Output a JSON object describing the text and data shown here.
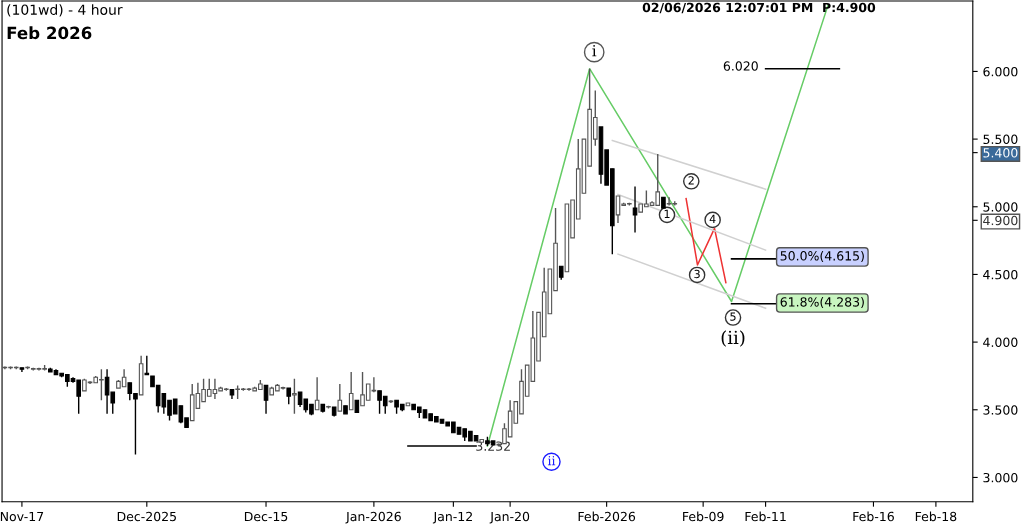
{
  "chart_data": {
    "type": "candlestick",
    "title": "(101wd) - 4 hour",
    "subtitle": "Feb 2026",
    "categories": [
      null,
      null,
      null,
      "Nov-17",
      null,
      null,
      null,
      null,
      null,
      null,
      null,
      null,
      null,
      null,
      null,
      null,
      null,
      null,
      null,
      null,
      null,
      null,
      null,
      null,
      null,
      "Dec-2025",
      null,
      null,
      null,
      null,
      null,
      null,
      null,
      null,
      null,
      null,
      null,
      null,
      null,
      null,
      null,
      null,
      null,
      null,
      null,
      null,
      "Dec-15",
      null,
      null,
      null,
      null,
      null,
      null,
      null,
      null,
      null,
      null,
      null,
      null,
      null,
      null,
      null,
      null,
      null,
      null,
      "Jan-2026",
      null,
      null,
      null,
      null,
      null,
      null,
      null,
      null,
      null,
      null,
      null,
      null,
      null,
      "Jan-12",
      null,
      null,
      null,
      null,
      null,
      null,
      null,
      null,
      null,
      "Jan-20",
      null,
      null,
      null,
      null,
      null,
      null,
      null,
      null,
      null,
      null,
      null,
      null,
      null,
      null,
      null,
      null,
      "Feb-2026",
      null,
      null,
      null,
      null,
      null,
      null,
      null,
      null,
      null,
      null,
      null,
      null,
      null,
      null,
      null,
      null,
      "Feb-09",
      null,
      null,
      null,
      null,
      null,
      null,
      null,
      null,
      null,
      null,
      "Feb-11",
      null,
      null,
      null,
      null,
      null,
      null,
      null,
      null,
      null,
      null,
      null,
      null,
      null,
      null,
      null,
      null,
      null,
      null,
      "Feb-16",
      null,
      null,
      null,
      null,
      null,
      null,
      null,
      null,
      null,
      null,
      "Feb-18",
      null,
      null,
      null,
      null,
      null,
      null
    ],
    "ohlc": [
      [
        3.81,
        3.82,
        3.8,
        3.81
      ],
      [
        3.81,
        3.82,
        3.8,
        3.81
      ],
      [
        3.81,
        3.82,
        3.8,
        3.81
      ],
      [
        3.81,
        3.81,
        3.78,
        3.8
      ],
      [
        3.81,
        3.82,
        3.8,
        3.81
      ],
      [
        3.8,
        3.81,
        3.79,
        3.8
      ],
      [
        3.8,
        3.81,
        3.79,
        3.8
      ],
      [
        3.8,
        3.83,
        3.79,
        3.8
      ],
      [
        3.8,
        3.81,
        3.78,
        3.78
      ],
      [
        3.79,
        3.8,
        3.76,
        3.76
      ],
      [
        3.77,
        3.77,
        3.74,
        3.75
      ],
      [
        3.76,
        3.76,
        3.67,
        3.71
      ],
      [
        3.73,
        3.74,
        3.7,
        3.71
      ],
      [
        3.72,
        3.72,
        3.47,
        3.6
      ],
      [
        3.64,
        3.73,
        3.64,
        3.72
      ],
      [
        3.7,
        3.71,
        3.69,
        3.7
      ],
      [
        3.7,
        3.75,
        3.7,
        3.74
      ],
      [
        3.72,
        3.8,
        3.57,
        3.72
      ],
      [
        3.74,
        3.8,
        3.47,
        3.61
      ],
      [
        3.63,
        3.63,
        3.47,
        3.55
      ],
      [
        3.66,
        3.72,
        3.66,
        3.71
      ],
      [
        3.67,
        3.8,
        3.67,
        3.74
      ],
      [
        3.7,
        3.7,
        3.57,
        3.62
      ],
      [
        3.62,
        3.62,
        3.17,
        3.58
      ],
      [
        3.61,
        3.9,
        3.61,
        3.84
      ],
      [
        3.77,
        3.9,
        3.76,
        3.76
      ],
      [
        3.75,
        3.75,
        3.67,
        3.67
      ],
      [
        3.68,
        3.68,
        3.48,
        3.53
      ],
      [
        3.62,
        3.62,
        3.47,
        3.52
      ],
      [
        3.57,
        3.57,
        3.42,
        3.46
      ],
      [
        3.58,
        3.58,
        3.47,
        3.47
      ],
      [
        3.53,
        3.53,
        3.4,
        3.41
      ],
      [
        3.44,
        3.44,
        3.37,
        3.37
      ],
      [
        3.42,
        3.69,
        3.42,
        3.61
      ],
      [
        3.51,
        3.7,
        3.51,
        3.62
      ],
      [
        3.56,
        3.73,
        3.56,
        3.65
      ],
      [
        3.6,
        3.73,
        3.6,
        3.65
      ],
      [
        3.62,
        3.73,
        3.58,
        3.65
      ],
      [
        3.64,
        3.67,
        3.64,
        3.66
      ],
      [
        3.65,
        3.66,
        3.64,
        3.65
      ],
      [
        3.65,
        3.65,
        3.58,
        3.61
      ],
      [
        3.65,
        3.68,
        3.58,
        3.65
      ],
      [
        3.65,
        3.66,
        3.64,
        3.65
      ],
      [
        3.65,
        3.66,
        3.64,
        3.65
      ],
      [
        3.64,
        3.67,
        3.64,
        3.66
      ],
      [
        3.65,
        3.72,
        3.65,
        3.69
      ],
      [
        3.68,
        3.68,
        3.47,
        3.57
      ],
      [
        3.61,
        3.67,
        3.61,
        3.66
      ],
      [
        3.64,
        3.69,
        3.64,
        3.68
      ],
      [
        3.66,
        3.67,
        3.65,
        3.66
      ],
      [
        3.66,
        3.66,
        3.54,
        3.6
      ],
      [
        3.61,
        3.73,
        3.47,
        3.62
      ],
      [
        3.63,
        3.63,
        3.52,
        3.54
      ],
      [
        3.58,
        3.58,
        3.48,
        3.5
      ],
      [
        3.54,
        3.54,
        3.46,
        3.47
      ],
      [
        3.5,
        3.74,
        3.5,
        3.57
      ],
      [
        3.54,
        3.54,
        3.48,
        3.49
      ],
      [
        3.52,
        3.53,
        3.51,
        3.52
      ],
      [
        3.52,
        3.52,
        3.45,
        3.46
      ],
      [
        3.49,
        3.69,
        3.49,
        3.57
      ],
      [
        3.53,
        3.53,
        3.47,
        3.47
      ],
      [
        3.5,
        3.78,
        3.5,
        3.62
      ],
      [
        3.57,
        3.57,
        3.48,
        3.48
      ],
      [
        3.53,
        3.78,
        3.53,
        3.61
      ],
      [
        3.57,
        3.69,
        3.57,
        3.69
      ],
      [
        3.64,
        3.74,
        3.63,
        3.64
      ],
      [
        3.64,
        3.64,
        3.47,
        3.57
      ],
      [
        3.6,
        3.6,
        3.47,
        3.53
      ],
      [
        3.56,
        3.57,
        3.55,
        3.56
      ],
      [
        3.57,
        3.57,
        3.47,
        3.52
      ],
      [
        3.54,
        3.54,
        3.49,
        3.5
      ],
      [
        3.53,
        3.55,
        3.53,
        3.55
      ],
      [
        3.54,
        3.54,
        3.5,
        3.5
      ],
      [
        3.52,
        3.52,
        3.44,
        3.48
      ],
      [
        3.5,
        3.5,
        3.44,
        3.44
      ],
      [
        3.47,
        3.47,
        3.42,
        3.42
      ],
      [
        3.45,
        3.45,
        3.41,
        3.41
      ],
      [
        3.43,
        3.43,
        3.4,
        3.4
      ],
      [
        3.41,
        3.41,
        3.38,
        3.38
      ],
      [
        3.41,
        3.41,
        3.33,
        3.33
      ],
      [
        3.37,
        3.37,
        3.32,
        3.32
      ],
      [
        3.36,
        3.36,
        3.27,
        3.3
      ],
      [
        3.34,
        3.34,
        3.27,
        3.27
      ],
      [
        3.31,
        3.31,
        3.27,
        3.27
      ],
      [
        3.26,
        3.28,
        3.26,
        3.28
      ],
      [
        3.27,
        3.3,
        3.232,
        3.25
      ],
      [
        3.27,
        3.27,
        3.24,
        3.24
      ],
      [
        3.24,
        3.25,
        3.23,
        3.24
      ],
      [
        3.25,
        3.4,
        3.25,
        3.36
      ],
      [
        3.3,
        3.57,
        3.3,
        3.49
      ],
      [
        3.4,
        3.56,
        3.4,
        3.56
      ],
      [
        3.47,
        3.8,
        3.47,
        3.71
      ],
      [
        3.6,
        3.83,
        3.6,
        3.83
      ],
      [
        3.71,
        4.23,
        3.71,
        4.03
      ],
      [
        3.86,
        4.22,
        3.86,
        4.22
      ],
      [
        4.04,
        4.55,
        4.04,
        4.37
      ],
      [
        4.21,
        4.54,
        4.21,
        4.54
      ],
      [
        4.38,
        4.99,
        4.38,
        4.73
      ],
      [
        4.56,
        4.56,
        4.46,
        4.48
      ],
      [
        4.52,
        5.02,
        4.52,
        5.02
      ],
      [
        4.77,
        5.05,
        4.77,
        5.05
      ],
      [
        4.91,
        5.5,
        4.91,
        5.28
      ],
      [
        5.1,
        5.5,
        5.1,
        5.5
      ],
      [
        5.3,
        6.02,
        5.3,
        5.72
      ],
      [
        5.5,
        5.86,
        5.45,
        5.66
      ],
      [
        5.59,
        5.59,
        5.17,
        5.24
      ],
      [
        5.42,
        5.42,
        5.16,
        5.16
      ],
      [
        5.28,
        5.28,
        4.65,
        4.86
      ],
      [
        4.94,
        5.08,
        4.88,
        5.08
      ],
      [
        5.01,
        5.03,
        5.01,
        5.02
      ],
      [
        5.02,
        5.03,
        5.01,
        5.02
      ],
      [
        4.99,
        5.15,
        4.81,
        4.94
      ],
      [
        4.96,
        5.02,
        4.96,
        5.02
      ],
      [
        5.0,
        5.12,
        5.0,
        5.02
      ],
      [
        5.01,
        5.04,
        5.01,
        5.03
      ],
      [
        5.01,
        5.39,
        5.01,
        5.11
      ],
      [
        5.07,
        5.07,
        4.99,
        4.99
      ],
      [
        5.02,
        5.07,
        5.01,
        5.02
      ],
      [
        5.02,
        5.04,
        5.01,
        5.02
      ],
      null,
      null,
      null,
      null,
      null,
      null,
      null,
      null,
      null,
      null,
      null,
      null,
      null,
      null,
      null,
      null,
      null,
      null,
      null,
      null,
      null,
      null,
      null,
      null,
      null,
      null,
      null,
      null,
      null,
      null,
      null,
      null,
      null,
      null,
      null,
      null,
      null,
      null,
      null,
      null,
      null,
      null,
      null,
      null,
      null,
      null,
      null,
      null,
      null,
      null,
      null,
      null
    ],
    "series": [
      {
        "type": "line",
        "color": "#66cc66",
        "values": [
          null,
          null,
          null,
          null,
          null,
          null,
          null,
          null,
          null,
          null,
          null,
          null,
          null,
          null,
          null,
          null,
          null,
          null,
          null,
          null,
          null,
          null,
          null,
          null,
          null,
          null,
          null,
          null,
          null,
          null,
          null,
          null,
          null,
          null,
          null,
          null,
          null,
          null,
          null,
          null,
          null,
          null,
          null,
          null,
          null,
          null,
          null,
          null,
          null,
          null,
          null,
          null,
          null,
          null,
          null,
          null,
          null,
          null,
          null,
          null,
          null,
          null,
          null,
          null,
          null,
          null,
          null,
          null,
          null,
          null,
          null,
          null,
          null,
          null,
          null,
          null,
          null,
          null,
          null,
          null,
          null,
          null,
          null,
          null,
          null,
          3.232,
          null,
          null,
          null,
          null,
          null,
          null,
          null,
          null,
          null,
          null,
          null,
          null,
          null,
          null,
          null,
          null,
          null,
          6.02,
          null,
          null,
          null,
          null,
          null,
          null,
          null,
          null,
          null,
          null,
          null,
          null,
          null,
          null,
          null,
          null,
          null,
          null,
          null,
          null,
          null,
          null,
          null,
          null,
          4.3,
          null,
          null,
          null,
          null,
          null,
          null,
          null,
          null,
          null,
          null,
          null,
          null,
          null,
          null,
          null,
          null,
          6.49,
          null,
          null,
          null,
          null,
          null,
          null,
          null,
          null,
          null,
          null,
          null,
          null,
          null,
          null,
          null,
          null,
          null,
          null,
          null,
          null,
          null,
          null,
          null,
          null,
          null
        ]
      },
      {
        "type": "line",
        "color": "#ee3333",
        "values": [
          null,
          null,
          null,
          null,
          null,
          null,
          null,
          null,
          null,
          null,
          null,
          null,
          null,
          null,
          null,
          null,
          null,
          null,
          null,
          null,
          null,
          null,
          null,
          null,
          null,
          null,
          null,
          null,
          null,
          null,
          null,
          null,
          null,
          null,
          null,
          null,
          null,
          null,
          null,
          null,
          null,
          null,
          null,
          null,
          null,
          null,
          null,
          null,
          null,
          null,
          null,
          null,
          null,
          null,
          null,
          null,
          null,
          null,
          null,
          null,
          null,
          null,
          null,
          null,
          null,
          null,
          null,
          null,
          null,
          null,
          null,
          null,
          null,
          null,
          null,
          null,
          null,
          null,
          null,
          null,
          null,
          null,
          null,
          null,
          null,
          null,
          null,
          null,
          null,
          null,
          null,
          null,
          null,
          null,
          null,
          null,
          null,
          null,
          null,
          null,
          null,
          null,
          null,
          null,
          null,
          null,
          null,
          null,
          null,
          null,
          null,
          null,
          null,
          null,
          null,
          null,
          null,
          null,
          null,
          null,
          5.06,
          null,
          4.57,
          null,
          null,
          4.84,
          null,
          4.44,
          null,
          null,
          null,
          null,
          null,
          null,
          null,
          null,
          null,
          null,
          null,
          null,
          null,
          null,
          null,
          null,
          null,
          null,
          null,
          null,
          null,
          null,
          null,
          null,
          null,
          null,
          null,
          null,
          null,
          null,
          null,
          null,
          null,
          null,
          null,
          null,
          null,
          null,
          null,
          null,
          null,
          null,
          null
        ]
      },
      {
        "type": "line",
        "color": "#d0d0d0",
        "values": [
          null,
          null,
          null,
          null,
          null,
          null,
          null,
          null,
          null,
          null,
          null,
          null,
          null,
          null,
          null,
          null,
          null,
          null,
          null,
          null,
          null,
          null,
          null,
          null,
          null,
          null,
          null,
          null,
          null,
          null,
          null,
          null,
          null,
          null,
          null,
          null,
          null,
          null,
          null,
          null,
          null,
          null,
          null,
          null,
          null,
          null,
          null,
          null,
          null,
          null,
          null,
          null,
          null,
          null,
          null,
          null,
          null,
          null,
          null,
          null,
          null,
          null,
          null,
          null,
          null,
          null,
          null,
          null,
          null,
          null,
          null,
          null,
          null,
          null,
          null,
          null,
          null,
          null,
          null,
          null,
          null,
          null,
          null,
          null,
          null,
          null,
          null,
          null,
          null,
          null,
          null,
          null,
          null,
          null,
          null,
          null,
          null,
          null,
          null,
          null,
          null,
          null,
          null,
          null,
          null,
          null,
          null,
          5.49,
          null,
          null,
          null,
          null,
          null,
          null,
          null,
          null,
          null,
          null,
          null,
          null,
          null,
          null,
          null,
          null,
          null,
          null,
          null,
          null,
          null,
          null,
          null,
          null,
          null,
          null,
          5.13,
          null,
          null,
          null,
          null,
          null,
          null,
          null,
          null,
          null,
          null,
          null,
          null,
          null,
          null,
          null,
          null,
          null,
          null,
          null,
          null,
          null,
          null,
          null,
          null,
          null,
          null,
          null,
          null,
          null,
          null,
          null,
          null,
          null,
          null,
          null,
          null
        ]
      },
      {
        "type": "line",
        "color": "#d0d0d0",
        "values": [
          null,
          null,
          null,
          null,
          null,
          null,
          null,
          null,
          null,
          null,
          null,
          null,
          null,
          null,
          null,
          null,
          null,
          null,
          null,
          null,
          null,
          null,
          null,
          null,
          null,
          null,
          null,
          null,
          null,
          null,
          null,
          null,
          null,
          null,
          null,
          null,
          null,
          null,
          null,
          null,
          null,
          null,
          null,
          null,
          null,
          null,
          null,
          null,
          null,
          null,
          null,
          null,
          null,
          null,
          null,
          null,
          null,
          null,
          null,
          null,
          null,
          null,
          null,
          null,
          null,
          null,
          null,
          null,
          null,
          null,
          null,
          null,
          null,
          null,
          null,
          null,
          null,
          null,
          null,
          null,
          null,
          null,
          null,
          null,
          null,
          null,
          null,
          null,
          null,
          null,
          null,
          null,
          null,
          null,
          null,
          null,
          null,
          null,
          null,
          null,
          null,
          null,
          null,
          null,
          null,
          null,
          null,
          null,
          5.09,
          null,
          null,
          null,
          null,
          null,
          null,
          null,
          null,
          null,
          null,
          null,
          null,
          null,
          null,
          null,
          null,
          null,
          null,
          null,
          null,
          null,
          null,
          null,
          null,
          null,
          4.68,
          null,
          null,
          null,
          null,
          null,
          null,
          null,
          null,
          null,
          null,
          null,
          null,
          null,
          null,
          null,
          null,
          null,
          null,
          null,
          null,
          null,
          null,
          null,
          null,
          null,
          null,
          null,
          null,
          null,
          null,
          null,
          null,
          null,
          null,
          null,
          null
        ]
      },
      {
        "type": "line",
        "color": "#d0d0d0",
        "values": [
          null,
          null,
          null,
          null,
          null,
          null,
          null,
          null,
          null,
          null,
          null,
          null,
          null,
          null,
          null,
          null,
          null,
          null,
          null,
          null,
          null,
          null,
          null,
          null,
          null,
          null,
          null,
          null,
          null,
          null,
          null,
          null,
          null,
          null,
          null,
          null,
          null,
          null,
          null,
          null,
          null,
          null,
          null,
          null,
          null,
          null,
          null,
          null,
          null,
          null,
          null,
          null,
          null,
          null,
          null,
          null,
          null,
          null,
          null,
          null,
          null,
          null,
          null,
          null,
          null,
          null,
          null,
          null,
          null,
          null,
          null,
          null,
          null,
          null,
          null,
          null,
          null,
          null,
          null,
          null,
          null,
          null,
          null,
          null,
          null,
          null,
          null,
          null,
          null,
          null,
          null,
          null,
          null,
          null,
          null,
          null,
          null,
          null,
          null,
          null,
          null,
          null,
          null,
          null,
          null,
          null,
          null,
          null,
          4.65,
          null,
          null,
          null,
          null,
          null,
          null,
          null,
          null,
          null,
          null,
          null,
          null,
          null,
          null,
          null,
          null,
          null,
          null,
          null,
          null,
          null,
          null,
          null,
          null,
          null,
          4.25,
          null,
          null,
          null,
          null,
          null,
          null,
          null,
          null,
          null,
          null,
          null,
          null,
          null,
          null,
          null,
          null,
          null,
          null,
          null,
          null,
          null,
          null,
          null,
          null,
          null,
          null,
          null,
          null,
          null,
          null,
          null,
          null,
          null,
          null,
          null,
          null
        ]
      },
      {
        "type": "line",
        "color": "#000000",
        "values": [
          null,
          null,
          null,
          null,
          null,
          null,
          null,
          null,
          null,
          null,
          null,
          null,
          null,
          null,
          null,
          null,
          null,
          null,
          null,
          null,
          null,
          null,
          null,
          null,
          null,
          null,
          null,
          null,
          null,
          null,
          null,
          null,
          null,
          null,
          null,
          null,
          null,
          null,
          null,
          null,
          null,
          null,
          null,
          null,
          null,
          null,
          null,
          null,
          null,
          null,
          null,
          null,
          null,
          null,
          null,
          null,
          null,
          null,
          null,
          null,
          null,
          null,
          null,
          null,
          null,
          null,
          null,
          null,
          null,
          null,
          null,
          3.232,
          null,
          null,
          null,
          null,
          null,
          null,
          null,
          null,
          null,
          null,
          null,
          3.232,
          null,
          null,
          null,
          null,
          null,
          null,
          null,
          null,
          null,
          null,
          null,
          null,
          null,
          null,
          null,
          null,
          null,
          null,
          null,
          null,
          null,
          null,
          null,
          null,
          null,
          null,
          null,
          null,
          null,
          null,
          null,
          null,
          null,
          null,
          null,
          null,
          null,
          null,
          null,
          null,
          null,
          null,
          null,
          null,
          null,
          null,
          null,
          null,
          null,
          null,
          null,
          null,
          null,
          null,
          null,
          null,
          null,
          null,
          null,
          null,
          null,
          null,
          null,
          null,
          null,
          null,
          null,
          null,
          null,
          null,
          null,
          null,
          null,
          null,
          null,
          null,
          null,
          null,
          null,
          null,
          null,
          null,
          null,
          null,
          null,
          null,
          null
        ]
      },
      {
        "type": "line",
        "color": "#000000",
        "values": [
          null,
          null,
          null,
          null,
          null,
          null,
          null,
          null,
          null,
          null,
          null,
          null,
          null,
          null,
          null,
          null,
          null,
          null,
          null,
          null,
          null,
          null,
          null,
          null,
          null,
          null,
          null,
          null,
          null,
          null,
          null,
          null,
          null,
          null,
          null,
          null,
          null,
          null,
          null,
          null,
          null,
          null,
          null,
          null,
          null,
          null,
          null,
          null,
          null,
          null,
          null,
          null,
          null,
          null,
          null,
          null,
          null,
          null,
          null,
          null,
          null,
          null,
          null,
          null,
          null,
          null,
          null,
          null,
          null,
          null,
          null,
          null,
          null,
          null,
          null,
          null,
          null,
          null,
          null,
          null,
          null,
          null,
          null,
          null,
          null,
          null,
          null,
          null,
          null,
          null,
          null,
          null,
          null,
          null,
          null,
          null,
          null,
          null,
          null,
          null,
          null,
          null,
          null,
          null,
          null,
          null,
          null,
          null,
          null,
          null,
          null,
          null,
          null,
          null,
          null,
          null,
          null,
          null,
          null,
          null,
          null,
          null,
          null,
          null,
          null,
          null,
          null,
          null,
          null,
          null,
          null,
          null,
          null,
          null,
          6.02,
          null,
          null,
          null,
          null,
          null,
          null,
          null,
          null,
          null,
          null,
          null,
          null,
          6.02,
          null,
          null,
          null,
          null,
          null,
          null,
          null,
          null,
          null,
          null,
          null,
          null,
          null,
          null,
          null,
          null,
          null,
          null,
          null,
          null,
          null,
          null,
          null
        ]
      },
      {
        "type": "line",
        "color": "#000000",
        "values": [
          null,
          null,
          null,
          null,
          null,
          null,
          null,
          null,
          null,
          null,
          null,
          null,
          null,
          null,
          null,
          null,
          null,
          null,
          null,
          null,
          null,
          null,
          null,
          null,
          null,
          null,
          null,
          null,
          null,
          null,
          null,
          null,
          null,
          null,
          null,
          null,
          null,
          null,
          null,
          null,
          null,
          null,
          null,
          null,
          null,
          null,
          null,
          null,
          null,
          null,
          null,
          null,
          null,
          null,
          null,
          null,
          null,
          null,
          null,
          null,
          null,
          null,
          null,
          null,
          null,
          null,
          null,
          null,
          null,
          null,
          null,
          null,
          null,
          null,
          null,
          null,
          null,
          null,
          null,
          null,
          null,
          null,
          null,
          null,
          null,
          null,
          null,
          null,
          null,
          null,
          null,
          null,
          null,
          null,
          null,
          null,
          null,
          null,
          null,
          null,
          null,
          null,
          null,
          null,
          null,
          null,
          null,
          null,
          null,
          null,
          null,
          null,
          null,
          null,
          null,
          null,
          null,
          null,
          null,
          null,
          null,
          null,
          null,
          null,
          null,
          null,
          null,
          null,
          4.615,
          null,
          null,
          null,
          null,
          null,
          null,
          null,
          4.615,
          null,
          null,
          null,
          null,
          null,
          null,
          null,
          null,
          null,
          null,
          null,
          null,
          null,
          null,
          null,
          null,
          null,
          null,
          null,
          null,
          null,
          null,
          null,
          null,
          null,
          null,
          null,
          null,
          null,
          null,
          null,
          null,
          null,
          null
        ]
      },
      {
        "type": "line",
        "color": "#000000",
        "values": [
          null,
          null,
          null,
          null,
          null,
          null,
          null,
          null,
          null,
          null,
          null,
          null,
          null,
          null,
          null,
          null,
          null,
          null,
          null,
          null,
          null,
          null,
          null,
          null,
          null,
          null,
          null,
          null,
          null,
          null,
          null,
          null,
          null,
          null,
          null,
          null,
          null,
          null,
          null,
          null,
          null,
          null,
          null,
          null,
          null,
          null,
          null,
          null,
          null,
          null,
          null,
          null,
          null,
          null,
          null,
          null,
          null,
          null,
          null,
          null,
          null,
          null,
          null,
          null,
          null,
          null,
          null,
          null,
          null,
          null,
          null,
          null,
          null,
          null,
          null,
          null,
          null,
          null,
          null,
          null,
          null,
          null,
          null,
          null,
          null,
          null,
          null,
          null,
          null,
          null,
          null,
          null,
          null,
          null,
          null,
          null,
          null,
          null,
          null,
          null,
          null,
          null,
          null,
          null,
          null,
          null,
          null,
          null,
          null,
          null,
          null,
          null,
          null,
          null,
          null,
          null,
          null,
          null,
          null,
          null,
          null,
          null,
          null,
          null,
          null,
          null,
          null,
          null,
          4.283,
          null,
          null,
          null,
          null,
          null,
          null,
          null,
          4.283,
          null,
          null,
          null,
          null,
          null,
          null,
          null,
          null,
          null,
          null,
          null,
          null,
          null,
          null,
          null,
          null,
          null,
          null,
          null,
          null,
          null,
          null,
          null,
          null,
          null,
          null,
          null,
          null,
          null,
          null,
          null,
          null,
          null,
          null
        ]
      }
    ],
    "ylim": [
      2.82,
      6.52
    ],
    "yticks": [
      {
        "value": 3,
        "label": "3.000"
      },
      {
        "value": 3.5,
        "label": "3.500"
      },
      {
        "value": 4,
        "label": "4.000"
      },
      {
        "value": 4.5,
        "label": "4.500"
      },
      {
        "value": 4.9,
        "label": "4.900"
      },
      {
        "value": 5,
        "label": "5.000"
      },
      {
        "value": 5.4,
        "label": "5.400"
      },
      {
        "value": 5.5,
        "label": "5.500"
      },
      {
        "value": 6,
        "label": "6.000"
      }
    ],
    "annotations": [
      "02/06/2026 12:07:01 PM  P:4.900",
      "i",
      "(ii)",
      "ii",
      "1",
      "2",
      "3",
      "4",
      "5",
      "3.232",
      "6.020",
      "50.0%(4.615)",
      "61.8%(4.283)"
    ],
    "grid": false,
    "legend": false
  }
}
